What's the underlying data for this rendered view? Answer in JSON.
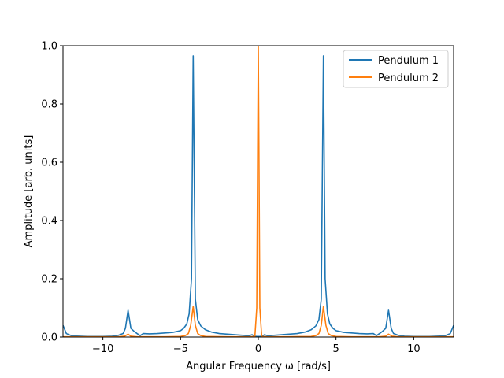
{
  "chart_data": {
    "type": "line",
    "xlabel": "Angular Frequency ω [rad/s]",
    "ylabel": "Amplitude [arb. units]",
    "xlim": [
      -12.566,
      12.566
    ],
    "ylim": [
      0,
      1
    ],
    "xticks": [
      -10,
      -5,
      0,
      5,
      10
    ],
    "xtick_labels": [
      "−10",
      "−5",
      "0",
      "5",
      "10"
    ],
    "yticks": [
      0,
      0.2,
      0.4,
      0.6,
      0.8,
      1.0
    ],
    "ytick_labels": [
      "0.0",
      "0.2",
      "0.4",
      "0.6",
      "0.8",
      "1.0"
    ],
    "grid": false,
    "legend_position": "top-right",
    "series": [
      {
        "name": "Pendulum 1",
        "color": "#1f77b4",
        "points": [
          [
            -12.566,
            0.04
          ],
          [
            -12.35,
            0.012
          ],
          [
            -12.0,
            0.004
          ],
          [
            -11.0,
            0.002
          ],
          [
            -10.0,
            0.002
          ],
          [
            -9.4,
            0.003
          ],
          [
            -9.0,
            0.006
          ],
          [
            -8.7,
            0.012
          ],
          [
            -8.55,
            0.03
          ],
          [
            -8.38,
            0.092
          ],
          [
            -8.2,
            0.03
          ],
          [
            -8.0,
            0.02
          ],
          [
            -7.8,
            0.012
          ],
          [
            -7.6,
            0.005
          ],
          [
            -7.4,
            0.012
          ],
          [
            -7.0,
            0.011
          ],
          [
            -6.5,
            0.012
          ],
          [
            -6.0,
            0.014
          ],
          [
            -5.5,
            0.016
          ],
          [
            -5.0,
            0.022
          ],
          [
            -4.8,
            0.03
          ],
          [
            -4.6,
            0.045
          ],
          [
            -4.45,
            0.08
          ],
          [
            -4.3,
            0.2
          ],
          [
            -4.19,
            0.965
          ],
          [
            -4.05,
            0.13
          ],
          [
            -3.9,
            0.06
          ],
          [
            -3.7,
            0.038
          ],
          [
            -3.4,
            0.025
          ],
          [
            -3.0,
            0.017
          ],
          [
            -2.5,
            0.012
          ],
          [
            -2.0,
            0.01
          ],
          [
            -1.5,
            0.008
          ],
          [
            -1.0,
            0.006
          ],
          [
            -0.6,
            0.004
          ],
          [
            -0.4,
            0.008
          ],
          [
            -0.25,
            0.003
          ],
          [
            -0.1,
            0.002
          ],
          [
            0.0,
            0.002
          ],
          [
            0.1,
            0.002
          ],
          [
            0.25,
            0.003
          ],
          [
            0.4,
            0.008
          ],
          [
            0.6,
            0.004
          ],
          [
            1.0,
            0.006
          ],
          [
            1.5,
            0.008
          ],
          [
            2.0,
            0.01
          ],
          [
            2.5,
            0.012
          ],
          [
            3.0,
            0.017
          ],
          [
            3.4,
            0.025
          ],
          [
            3.7,
            0.038
          ],
          [
            3.9,
            0.06
          ],
          [
            4.05,
            0.13
          ],
          [
            4.19,
            0.965
          ],
          [
            4.3,
            0.2
          ],
          [
            4.45,
            0.08
          ],
          [
            4.6,
            0.045
          ],
          [
            4.8,
            0.03
          ],
          [
            5.0,
            0.022
          ],
          [
            5.5,
            0.016
          ],
          [
            6.0,
            0.014
          ],
          [
            6.5,
            0.012
          ],
          [
            7.0,
            0.011
          ],
          [
            7.4,
            0.012
          ],
          [
            7.6,
            0.005
          ],
          [
            7.8,
            0.012
          ],
          [
            8.0,
            0.02
          ],
          [
            8.2,
            0.03
          ],
          [
            8.38,
            0.092
          ],
          [
            8.55,
            0.03
          ],
          [
            8.7,
            0.012
          ],
          [
            9.0,
            0.006
          ],
          [
            9.4,
            0.003
          ],
          [
            10.0,
            0.002
          ],
          [
            11.0,
            0.002
          ],
          [
            12.0,
            0.004
          ],
          [
            12.35,
            0.012
          ],
          [
            12.566,
            0.04
          ]
        ]
      },
      {
        "name": "Pendulum 2",
        "color": "#ff7f0e",
        "points": [
          [
            -12.566,
            0.001
          ],
          [
            -10.0,
            0.001
          ],
          [
            -9.0,
            0.001
          ],
          [
            -8.6,
            0.003
          ],
          [
            -8.38,
            0.01
          ],
          [
            -8.2,
            0.003
          ],
          [
            -7.8,
            0.001
          ],
          [
            -6.0,
            0.001
          ],
          [
            -5.0,
            0.002
          ],
          [
            -4.7,
            0.005
          ],
          [
            -4.5,
            0.012
          ],
          [
            -4.35,
            0.04
          ],
          [
            -4.19,
            0.105
          ],
          [
            -4.05,
            0.04
          ],
          [
            -3.9,
            0.012
          ],
          [
            -3.7,
            0.005
          ],
          [
            -3.4,
            0.002
          ],
          [
            -2.0,
            0.001
          ],
          [
            -0.5,
            0.001
          ],
          [
            -0.22,
            0.002
          ],
          [
            -0.1,
            0.1
          ],
          [
            0.0,
            1.0
          ],
          [
            0.1,
            0.1
          ],
          [
            0.22,
            0.002
          ],
          [
            0.5,
            0.001
          ],
          [
            2.0,
            0.001
          ],
          [
            3.4,
            0.002
          ],
          [
            3.7,
            0.005
          ],
          [
            3.9,
            0.012
          ],
          [
            4.05,
            0.04
          ],
          [
            4.19,
            0.105
          ],
          [
            4.35,
            0.04
          ],
          [
            4.5,
            0.012
          ],
          [
            4.7,
            0.005
          ],
          [
            5.0,
            0.002
          ],
          [
            6.0,
            0.001
          ],
          [
            7.8,
            0.001
          ],
          [
            8.2,
            0.003
          ],
          [
            8.38,
            0.01
          ],
          [
            8.6,
            0.003
          ],
          [
            9.0,
            0.001
          ],
          [
            10.0,
            0.001
          ],
          [
            12.566,
            0.001
          ]
        ]
      }
    ]
  }
}
